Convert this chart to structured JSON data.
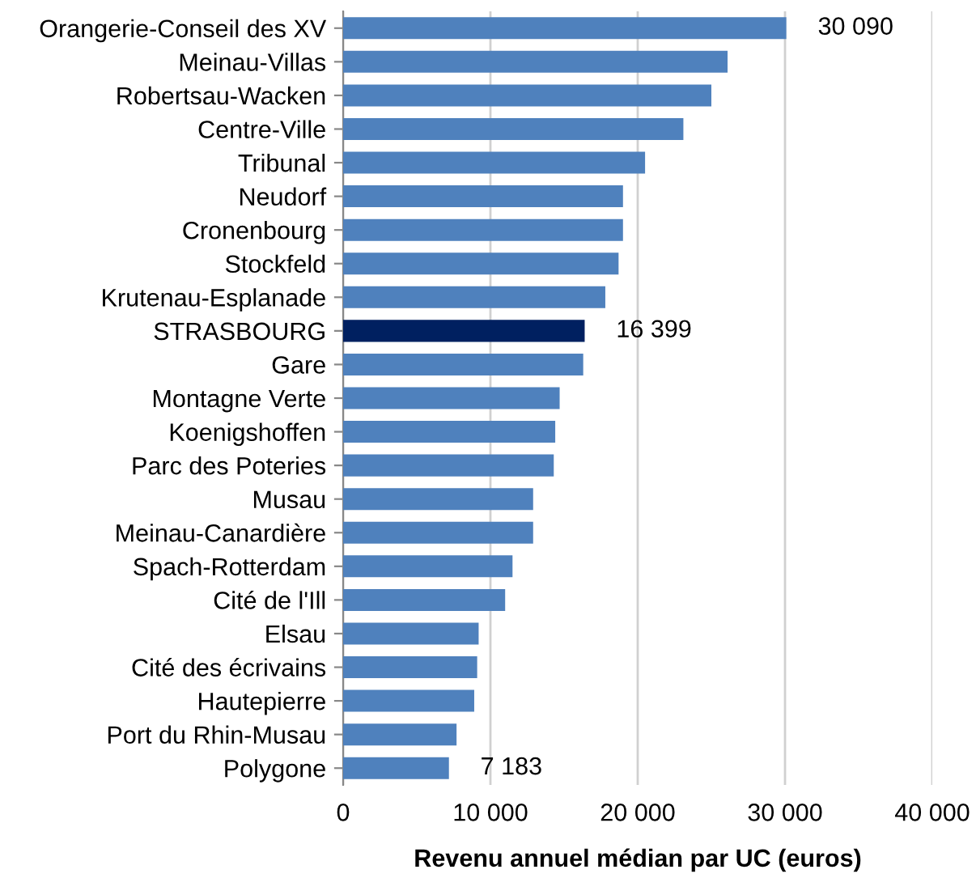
{
  "chart_data": {
    "type": "bar",
    "orientation": "horizontal",
    "xlabel": "Revenu annuel médian par UC (euros)",
    "categories": [
      "Orangerie-Conseil des XV",
      "Meinau-Villas",
      "Robertsau-Wacken",
      "Centre-Ville",
      "Tribunal",
      "Neudorf",
      "Cronenbourg",
      "Stockfeld",
      "Krutenau-Esplanade",
      "STRASBOURG",
      "Gare",
      "Montagne Verte",
      "Koenigshoffen",
      "Parc des Poteries",
      "Musau",
      "Meinau-Canardière",
      "Spach-Rotterdam",
      "Cité de l'Ill",
      "Elsau",
      "Cité des écrivains",
      "Hautepierre",
      "Port du Rhin-Musau",
      "Polygone"
    ],
    "values": [
      30090,
      26100,
      25000,
      23100,
      20500,
      19000,
      19000,
      18700,
      17800,
      16399,
      16300,
      14700,
      14400,
      14300,
      12900,
      12900,
      11500,
      11000,
      9200,
      9100,
      8900,
      7700,
      7183
    ],
    "colors": [
      "#4f81bd",
      "#4f81bd",
      "#4f81bd",
      "#4f81bd",
      "#4f81bd",
      "#4f81bd",
      "#4f81bd",
      "#4f81bd",
      "#4f81bd",
      "#002060",
      "#4f81bd",
      "#4f81bd",
      "#4f81bd",
      "#4f81bd",
      "#4f81bd",
      "#4f81bd",
      "#4f81bd",
      "#4f81bd",
      "#4f81bd",
      "#4f81bd",
      "#4f81bd",
      "#4f81bd",
      "#4f81bd"
    ],
    "value_labels": [
      "30 090",
      null,
      null,
      null,
      null,
      null,
      null,
      null,
      null,
      "16 399",
      null,
      null,
      null,
      null,
      null,
      null,
      null,
      null,
      null,
      null,
      null,
      null,
      "7 183"
    ],
    "xlim": [
      0,
      40000
    ],
    "xticks": [
      0,
      {
        "value": 10000,
        "label": "10 000"
      },
      {
        "value": 20000,
        "label": "20 000"
      },
      {
        "value": 30000,
        "label": "30 000"
      },
      {
        "value": 40000,
        "label": "40 000"
      }
    ],
    "grid": "x",
    "legend": false
  }
}
